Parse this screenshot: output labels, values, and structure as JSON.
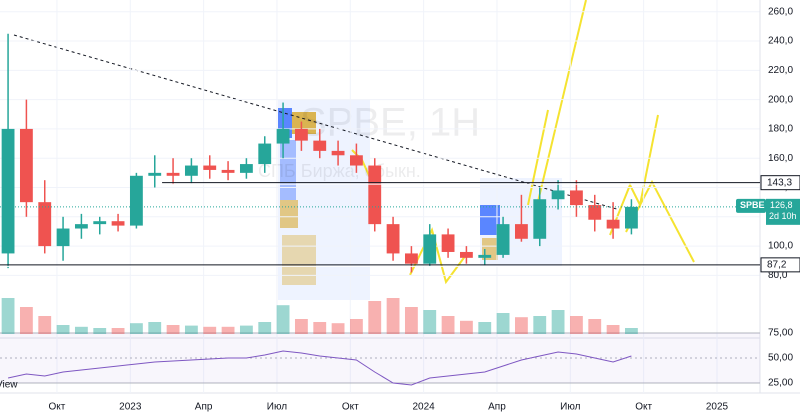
{
  "chart_data": {
    "type": "candlestick",
    "symbol": "SPBE",
    "watermark": "SPBE, 1H",
    "name": "СПБ Биржа, обыкн.",
    "countdown": "2d 10h",
    "up_color": "#26a69a",
    "down_color": "#ef5350",
    "x": [
      7.0,
      7.75,
      8.5,
      9.25,
      10.0,
      10.75,
      11.5,
      12.25,
      13.0,
      13.75,
      14.5,
      15.25,
      16.0,
      16.75,
      17.5,
      18.25,
      19.0,
      19.75,
      20.5,
      21.25,
      22.0,
      22.75,
      23.5,
      24.25,
      25.0,
      25.75,
      26.5,
      27.25,
      28.0,
      28.75,
      29.5,
      30.25,
      31.0,
      31.75,
      32.5
    ],
    "open": [
      95,
      180,
      130,
      100,
      112,
      115,
      117,
      114,
      148,
      150,
      148,
      155,
      152,
      150,
      156,
      170,
      180,
      172,
      165,
      162,
      155,
      115,
      95,
      88,
      108,
      96,
      92,
      94,
      115,
      105,
      132,
      138,
      128,
      118,
      112
    ],
    "high": [
      245,
      200,
      145,
      120,
      122,
      120,
      122,
      150,
      162,
      160,
      160,
      162,
      158,
      160,
      175,
      198,
      185,
      180,
      172,
      170,
      160,
      120,
      100,
      115,
      112,
      100,
      98,
      120,
      135,
      140,
      145,
      145,
      135,
      130,
      132
    ],
    "low": [
      85,
      120,
      95,
      90,
      105,
      108,
      110,
      112,
      140,
      142,
      143,
      146,
      145,
      146,
      150,
      160,
      165,
      160,
      155,
      150,
      110,
      90,
      82,
      86,
      92,
      88,
      87,
      92,
      103,
      100,
      125,
      120,
      110,
      105,
      108
    ],
    "close": [
      180,
      130,
      100,
      112,
      115,
      117,
      114,
      148,
      150,
      148,
      155,
      152,
      150,
      156,
      170,
      180,
      172,
      165,
      162,
      155,
      115,
      95,
      88,
      108,
      96,
      92,
      94,
      115,
      105,
      132,
      138,
      128,
      118,
      112,
      126.8
    ],
    "volume": [
      60,
      45,
      30,
      15,
      12,
      10,
      10,
      18,
      20,
      15,
      14,
      12,
      12,
      14,
      20,
      48,
      25,
      20,
      18,
      25,
      55,
      60,
      45,
      40,
      30,
      22,
      20,
      35,
      28,
      30,
      40,
      30,
      25,
      15,
      10
    ],
    "rsi": [
      30,
      34,
      32,
      36,
      38,
      40,
      42,
      44,
      46,
      47,
      48,
      49,
      50,
      50,
      53,
      57,
      55,
      52,
      50,
      48,
      36,
      25,
      23,
      30,
      32,
      34,
      36,
      42,
      48,
      52,
      56,
      54,
      50,
      46,
      52
    ],
    "xlim": [
      6.67,
      37.76
    ],
    "xticks": [
      {
        "value": 9,
        "label": "Окт"
      },
      {
        "value": 12,
        "label": "2023"
      },
      {
        "value": 15,
        "label": "Апр"
      },
      {
        "value": 18,
        "label": "Июл"
      },
      {
        "value": 21,
        "label": "Окт"
      },
      {
        "value": 24,
        "label": "2024"
      },
      {
        "value": 27,
        "label": "Апр"
      },
      {
        "value": 30,
        "label": "Июл"
      },
      {
        "value": 33,
        "label": "Окт"
      },
      {
        "value": 36,
        "label": "2025"
      }
    ],
    "ylim": [
      40,
      268
    ],
    "yticks": [
      {
        "value": 260,
        "label": "260,0"
      },
      {
        "value": 240,
        "label": "240,0"
      },
      {
        "value": 220,
        "label": "220,0"
      },
      {
        "value": 200,
        "label": "200,0"
      },
      {
        "value": 180,
        "label": "180,0"
      },
      {
        "value": 160,
        "label": "160,0"
      },
      {
        "value": 140,
        "label": "140,0"
      },
      {
        "value": 120,
        "label": "120,0"
      },
      {
        "value": 100,
        "label": "100,0"
      },
      {
        "value": 80,
        "label": "80,0"
      }
    ],
    "levels": [
      {
        "value": 143.3,
        "label": "143,3",
        "start": 13.3
      },
      {
        "value": 87.2,
        "label": "87,2"
      }
    ],
    "last": {
      "value": 126.8,
      "label": "126,8"
    },
    "volume_lim": [
      0,
      100
    ],
    "rsi_ylim": [
      20,
      78
    ],
    "rsi_yticks": [
      {
        "value": 75,
        "label": "75,00"
      },
      {
        "value": 50,
        "label": "50,00"
      },
      {
        "value": 25,
        "label": "25,00"
      }
    ]
  },
  "footer": "View"
}
